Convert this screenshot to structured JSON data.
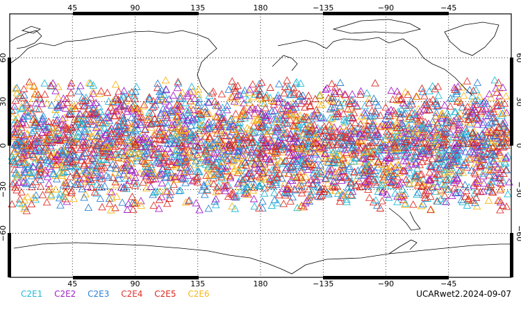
{
  "map": {
    "top_lon_labels": [
      "45",
      "90",
      "135",
      "180",
      "−135",
      "−90",
      "−45"
    ],
    "bottom_lon_labels": [
      "45",
      "90",
      "135",
      "180",
      "−135",
      "−90",
      "−45"
    ],
    "lat_labels": [
      "60",
      "30",
      "0",
      "−30",
      "−60"
    ],
    "lon_ticks": [
      45,
      90,
      135,
      180,
      225,
      270,
      315
    ],
    "lat_ticks": [
      60,
      30,
      0,
      -30,
      -60
    ],
    "lon_range": [
      0,
      360
    ],
    "lat_range": [
      -90,
      90
    ],
    "grid": "dotted",
    "marker_shape": "triangle",
    "point_lat_band": [
      -45,
      45
    ]
  },
  "legend": {
    "items": [
      {
        "label": "C2E1",
        "color": "#1fb7d6"
      },
      {
        "label": "C2E2",
        "color": "#a21fc8"
      },
      {
        "label": "C2E3",
        "color": "#2a7fd4"
      },
      {
        "label": "C2E4",
        "color": "#e0302a"
      },
      {
        "label": "C2E5",
        "color": "#d9261c"
      },
      {
        "label": "C2E6",
        "color": "#f5b616"
      }
    ]
  },
  "credit": "UCARwet2.2024-09-07"
}
